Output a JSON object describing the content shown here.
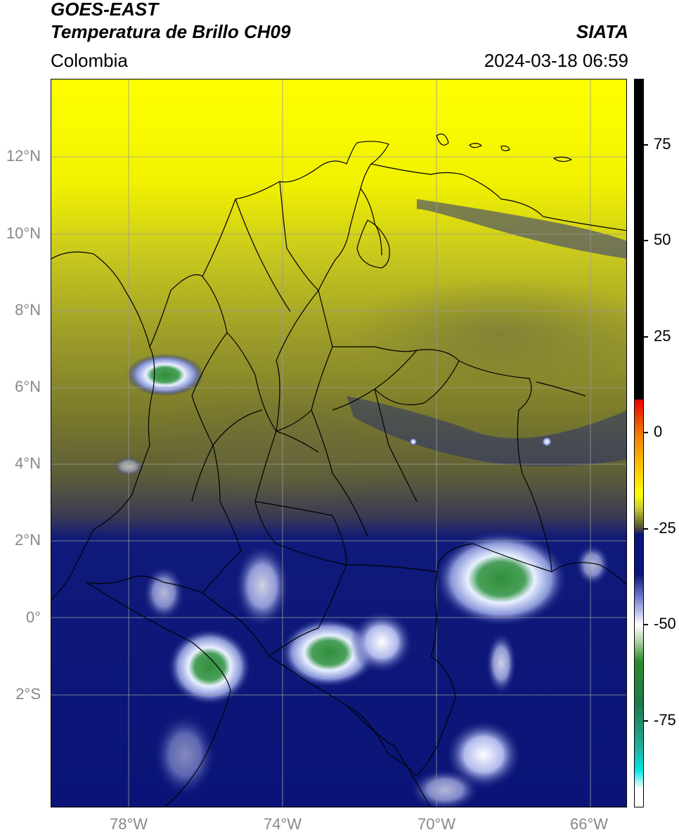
{
  "header": {
    "title_line1": "GOES-EAST",
    "title_line2": "Temperatura de Brillo CH09",
    "brand": "SIATA",
    "region": "Colombia",
    "timestamp": "2024-03-18 06:59"
  },
  "map": {
    "lat_labels": [
      "12°N",
      "10°N",
      "8°N",
      "6°N",
      "4°N",
      "2°N",
      "0°",
      "2°S"
    ],
    "lon_labels": [
      "78°W",
      "74°W",
      "70°W",
      "66°W"
    ],
    "grid_color": "#9a9a9a",
    "border_color": "#000000"
  },
  "colorbar": {
    "labels": [
      "75",
      "50",
      "25",
      "0",
      "-25",
      "-50",
      "-75"
    ],
    "colors": {
      "top": "#000000",
      "red": "#e60000",
      "orange": "#f59a00",
      "yellow": "#ffff00",
      "olive": "#6e6e2a",
      "navy": "#0a1478",
      "white": "#ffffff",
      "green": "#2c8a2c",
      "cyan": "#00e6e6"
    }
  }
}
